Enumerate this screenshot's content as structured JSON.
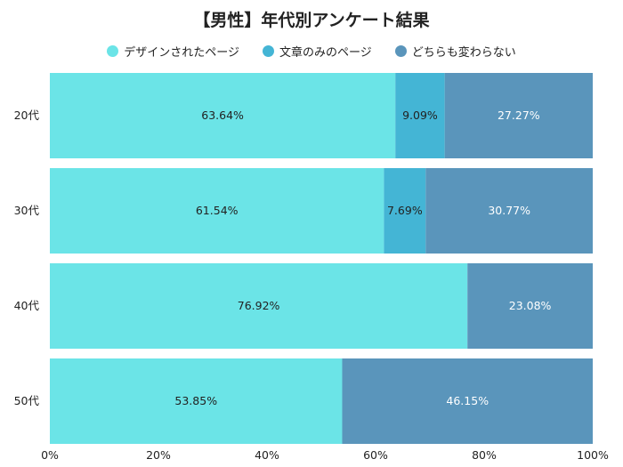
{
  "chart_data": {
    "type": "bar",
    "orientation": "horizontal",
    "stacked": true,
    "title": "【男性】年代別アンケート結果",
    "categories": [
      "20代",
      "30代",
      "40代",
      "50代"
    ],
    "series": [
      {
        "name": "デザインされたページ",
        "color": "#6be4e7",
        "values": [
          63.64,
          61.54,
          76.92,
          53.85
        ],
        "labels": [
          "63.64%",
          "61.54%",
          "76.92%",
          "53.85%"
        ]
      },
      {
        "name": "文章のみのページ",
        "color": "#44b5d5",
        "values": [
          9.09,
          7.69,
          0,
          0
        ],
        "labels": [
          "9.09%",
          "7.69%",
          "",
          ""
        ]
      },
      {
        "name": "どちらも変わらない",
        "color": "#5a95bb",
        "values": [
          27.27,
          30.77,
          23.08,
          46.15
        ],
        "labels": [
          "27.27%",
          "30.77%",
          "23.08%",
          "46.15%"
        ]
      }
    ],
    "xlim": [
      0,
      100
    ],
    "xticks": [
      "0%",
      "20%",
      "40%",
      "60%",
      "80%",
      "100%"
    ],
    "legend_position": "top",
    "grid": false
  }
}
